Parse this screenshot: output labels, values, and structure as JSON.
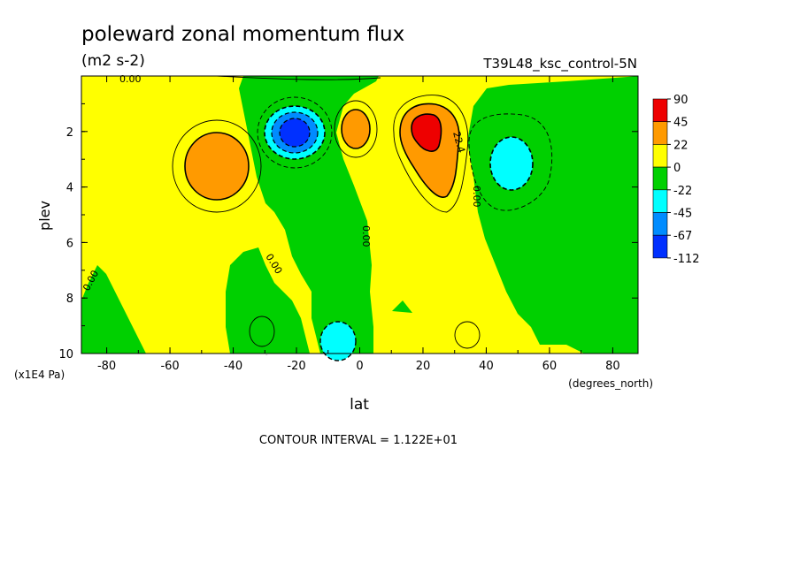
{
  "chart_data": {
    "type": "heatmap",
    "title": "poleward zonal momentum flux",
    "units": "(m2 s-2)",
    "run_label": "T39L48_ksc_control-5N",
    "xlabel": "lat",
    "x_units": "(degrees_north)",
    "ylabel": "plev",
    "y_units": "(x1E4 Pa)",
    "xlim": [
      -88,
      88
    ],
    "ylim": [
      0,
      10
    ],
    "y_inverted": true,
    "x_ticks": [
      "-80",
      "-60",
      "-40",
      "-20",
      "0",
      "20",
      "40",
      "60",
      "80"
    ],
    "y_ticks": [
      "2",
      "4",
      "6",
      "8",
      "10"
    ],
    "contour_interval_text": "CONTOUR INTERVAL = 1.122E+01",
    "contour_labels": [
      "0.00",
      "0.00",
      "0.00",
      "0.00",
      "0.00",
      "0.00",
      "22.4"
    ],
    "colorbar": {
      "labels": [
        "90",
        "45",
        "22",
        "0",
        "-22",
        "-45",
        "-67",
        "-112"
      ],
      "colors": [
        "#ee0000",
        "#ff9a00",
        "#ffff00",
        "#00d000",
        "#00ffff",
        "#008cff",
        "#0030ff"
      ]
    },
    "features": [
      {
        "name": "midlat-south-positive",
        "lat": -42,
        "plev": 3.1,
        "peak": 30
      },
      {
        "name": "subtropic-south-negative",
        "lat": -20,
        "plev": 2.1,
        "peak": -80
      },
      {
        "name": "equator-positive",
        "lat": -1,
        "plev": 2.0,
        "peak": 30
      },
      {
        "name": "subtropic-north-positive",
        "lat": 22,
        "plev": 2.1,
        "peak": 60
      },
      {
        "name": "midlat-north-negative",
        "lat": 50,
        "plev": 3.2,
        "peak": -35
      },
      {
        "name": "surface-negative",
        "lat": -6,
        "plev": 9.6,
        "peak": -35
      }
    ]
  }
}
